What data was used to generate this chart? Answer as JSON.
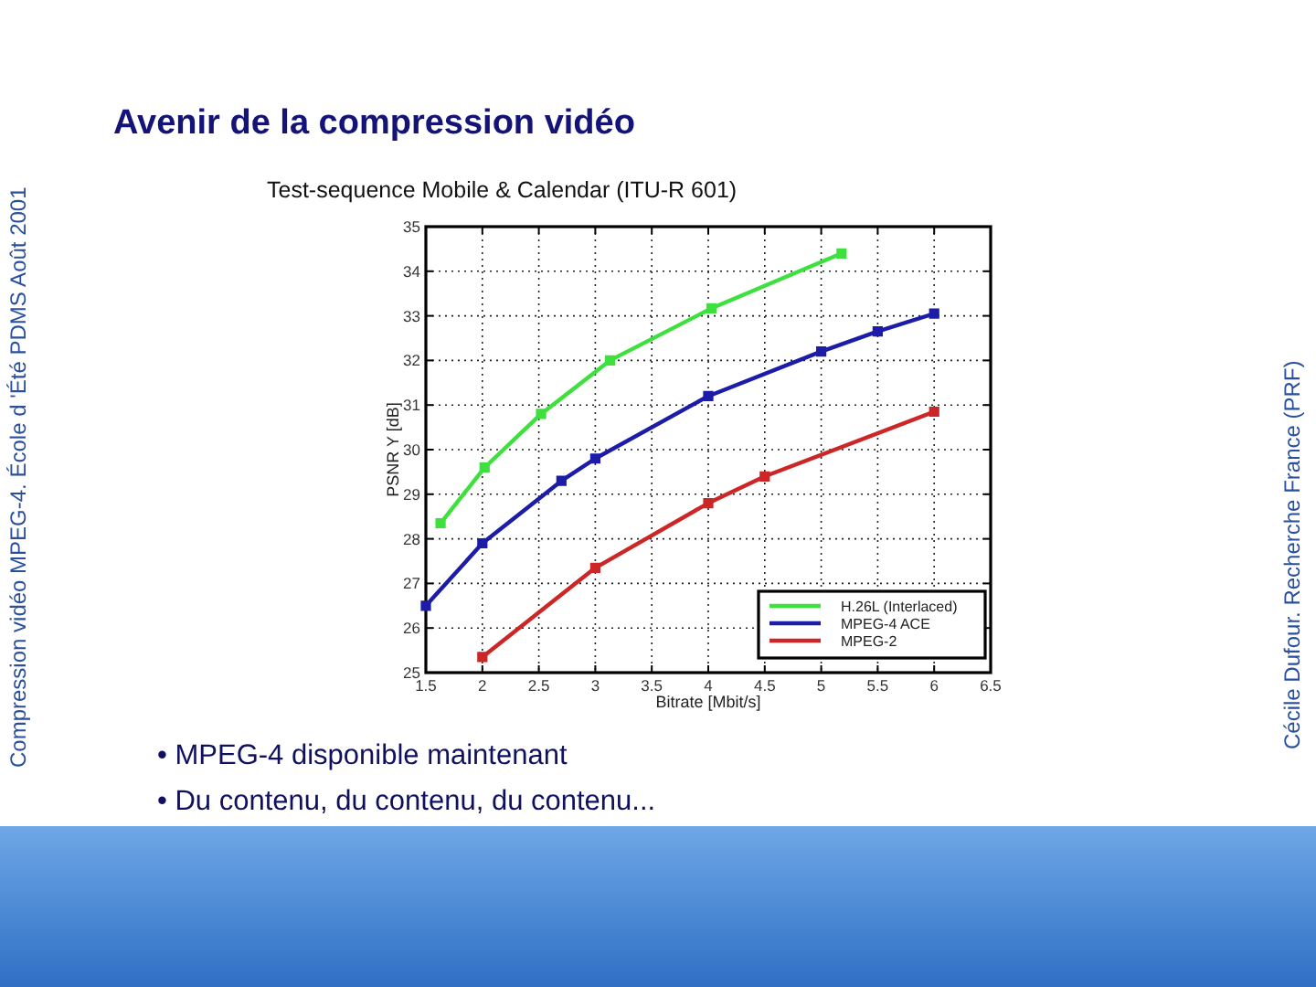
{
  "chart_data": {
    "type": "line",
    "title": "Avenir de la compression vidéo",
    "subtitle": "Test-sequence Mobile & Calendar (ITU-R 601)",
    "xlabel": "Bitrate [Mbit/s]",
    "ylabel": "PSNR Y [dB]",
    "annotations": [
      "• MPEG-4 disponible maintenant",
      "• Du contenu, du contenu, du contenu...",
      "Compression vidéo MPEG-4. École d 'Été PDMS Août 2001",
      "Cécile Dufour. Recherche France (PRF)"
    ],
    "xlim": [
      1.5,
      6.5
    ],
    "xticks": [
      1.5,
      2,
      2.5,
      3,
      3.5,
      4,
      4.5,
      5,
      5.5,
      6,
      6.5
    ],
    "ylim": [
      25,
      35
    ],
    "yticks": [
      25,
      26,
      27,
      28,
      29,
      30,
      31,
      32,
      33,
      34,
      35
    ],
    "grid": true,
    "legend": "bottom right",
    "marker": "square",
    "line_style": "solid",
    "series": [
      {
        "name": "H.26L (Interlaced)",
        "color": "#3de03d",
        "x": [
          1.63,
          2.02,
          2.52,
          3.13,
          4.03,
          5.18
        ],
        "values": [
          28.35,
          29.6,
          30.8,
          32.0,
          33.17,
          34.4
        ]
      },
      {
        "name": "MPEG-4 ACE",
        "color": "#1c1ca8",
        "x": [
          1.5,
          2,
          2.7,
          3,
          4,
          5,
          5.5,
          6
        ],
        "values": [
          26.5,
          27.9,
          29.3,
          29.8,
          31.2,
          32.2,
          32.65,
          33.05
        ]
      },
      {
        "name": "MPEG-2",
        "color": "#cc2626",
        "x": [
          2,
          3,
          4,
          4.5,
          6
        ],
        "values": [
          25.35,
          27.35,
          28.8,
          29.4,
          30.85
        ]
      }
    ]
  }
}
